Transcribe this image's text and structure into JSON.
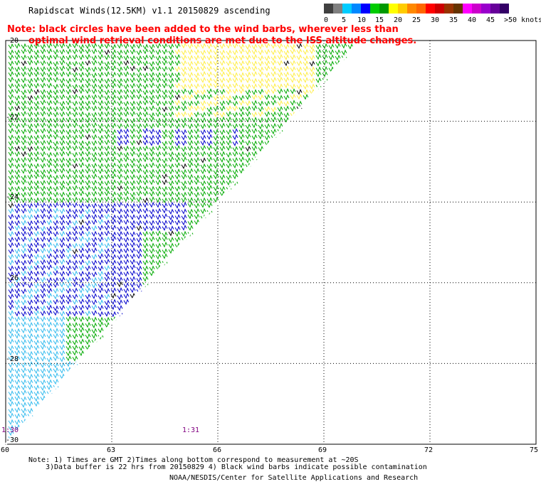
{
  "header": {
    "title": "Rapidscat Winds(12.5KM) v1.1 20150829 ascending"
  },
  "note": {
    "line1": "Note: black circles have been added to the wind barbs, wherever less than",
    "line2": "optimal wind retrieval conditions are met due to the ISS altitude changes."
  },
  "legend": {
    "labels": [
      "0",
      "5",
      "10",
      "15",
      "20",
      "25",
      "30",
      "35",
      "40",
      "45",
      ">50 knots"
    ],
    "colors": [
      "#404040",
      "#808080",
      "#00ccff",
      "#0088ff",
      "#0000ff",
      "#00cc00",
      "#009900",
      "#ffff00",
      "#ffcc00",
      "#ff8800",
      "#ff6600",
      "#ff0000",
      "#cc0000",
      "#993300",
      "#663300",
      "#ff00ff",
      "#cc00cc",
      "#9900cc",
      "#660099",
      "#330066"
    ]
  },
  "axes": {
    "x_ticks": [
      "60",
      "63",
      "66",
      "69",
      "72",
      "75"
    ],
    "y_ticks": [
      "-20",
      "-22",
      "-24",
      "-26",
      "-28",
      "-30"
    ]
  },
  "times": {
    "left": "1:30",
    "middle": "1:31"
  },
  "footer": {
    "note1": "Note: 1) Times are GMT 2)Times along bottom correspond to measurement at ~20S",
    "note2": "3)Data buffer is 22 hrs from 20150829 4) Black wind barbs indicate possible contamination",
    "credit": "NOAA/NESDIS/Center for Satellite Applications and Research"
  },
  "map": {
    "lon_range": [
      60,
      75
    ],
    "lat_range": [
      -30,
      -20
    ],
    "swath_edge": [
      [
        60,
        -30
      ],
      [
        70,
        -20
      ]
    ]
  },
  "barb_colors": {
    "cyan": "#33bbee",
    "blue": "#0000cc",
    "green": "#00aa00",
    "yellow": "#ffee44",
    "black": "#000000"
  }
}
